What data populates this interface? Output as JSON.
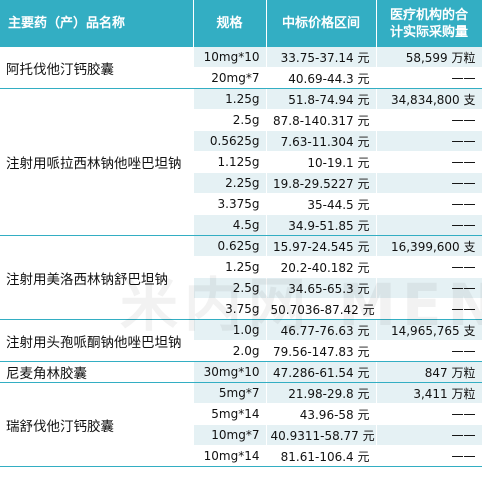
{
  "header": {
    "name": "主要药（产）品名称",
    "spec": "规格",
    "price": "中标价格区间",
    "qty_line1": "医疗机构的合",
    "qty_line2": "计实际采购量"
  },
  "groups": [
    {
      "name": "阿托伐他汀钙胶囊",
      "rows": [
        {
          "spec": "10mg*10",
          "price": "33.75-37.14 元",
          "qty": "58,599 万粒"
        },
        {
          "spec": "20mg*7",
          "price": "40.69-44.3 元",
          "qty": "一一"
        }
      ]
    },
    {
      "name": "注射用哌拉西林钠他唑巴坦钠",
      "rows": [
        {
          "spec": "1.25g",
          "price": "51.8-74.94 元",
          "qty": "34,834,800 支"
        },
        {
          "spec": "2.5g",
          "price": "87.8-140.317 元",
          "qty": "一一"
        },
        {
          "spec": "0.5625g",
          "price": "7.63-11.304 元",
          "qty": "一一"
        },
        {
          "spec": "1.125g",
          "price": "10-19.1 元",
          "qty": "一一"
        },
        {
          "spec": "2.25g",
          "price": "19.8-29.5227 元",
          "qty": "一一"
        },
        {
          "spec": "3.375g",
          "price": "35-44.5 元",
          "qty": "一一"
        },
        {
          "spec": "4.5g",
          "price": "34.9-51.85 元",
          "qty": "一一"
        }
      ]
    },
    {
      "name": "注射用美洛西林钠舒巴坦钠",
      "rows": [
        {
          "spec": "0.625g",
          "price": "15.97-24.545 元",
          "qty": "16,399,600 支"
        },
        {
          "spec": "1.25g",
          "price": "20.2-40.182 元",
          "qty": "一一"
        },
        {
          "spec": "2.5g",
          "price": "34.65-65.3 元",
          "qty": "一一"
        },
        {
          "spec": "3.75g",
          "price": "50.7036-87.42 元",
          "qty": "一一"
        }
      ]
    },
    {
      "name": "注射用头孢哌酮钠他唑巴坦钠",
      "rows": [
        {
          "spec": "1.0g",
          "price": "46.77-76.63 元",
          "qty": "14,965,765 支"
        },
        {
          "spec": "2.0g",
          "price": "79.56-147.83 元",
          "qty": "一一"
        }
      ]
    },
    {
      "name": "尼麦角林胶囊",
      "rows": [
        {
          "spec": "30mg*10",
          "price": "47.286-61.54 元",
          "qty": "847 万粒"
        }
      ]
    },
    {
      "name": "瑞舒伐他汀钙胶囊",
      "rows": [
        {
          "spec": "5mg*7",
          "price": "21.98-29.8 元",
          "qty": "3,411 万粒"
        },
        {
          "spec": "5mg*14",
          "price": "43.96-58 元",
          "qty": "一一"
        },
        {
          "spec": "10mg*7",
          "price": "40.9311-58.77 元",
          "qty": "一一"
        },
        {
          "spec": "10mg*14",
          "price": "81.61-106.4 元",
          "qty": "一一"
        }
      ]
    }
  ],
  "watermark": "米内网 MENET"
}
